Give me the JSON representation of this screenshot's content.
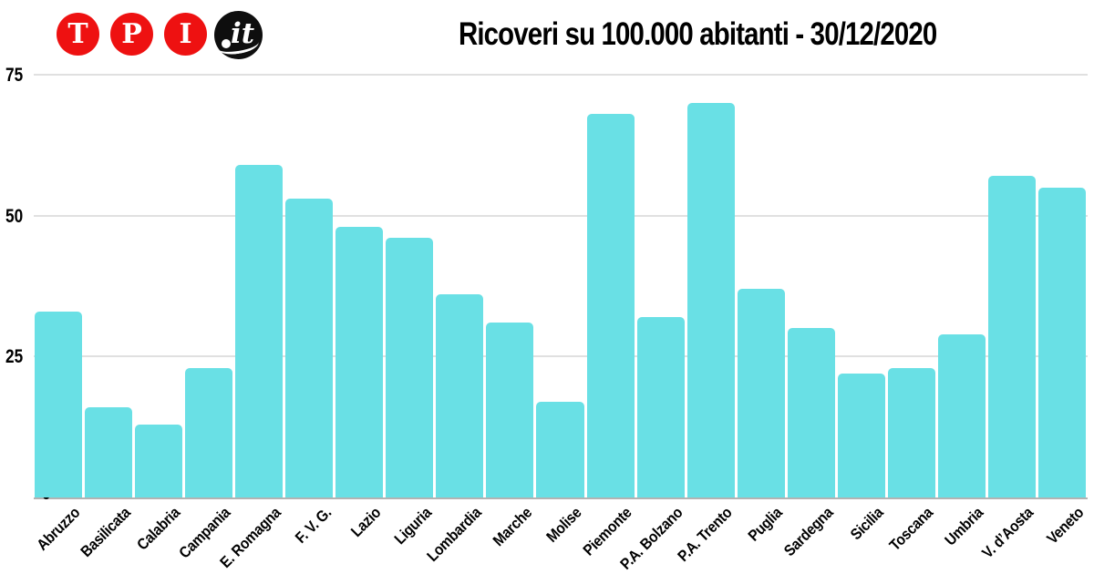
{
  "logo": {
    "letters": [
      "T",
      "P",
      "I"
    ],
    "suffix": "it",
    "circle_red": "#ee1111",
    "circle_black": "#0e0e0e"
  },
  "chart_data": {
    "type": "bar",
    "title": "Ricoveri su 100.000 abitanti - 30/12/2020",
    "categories": [
      "Abruzzo",
      "Basilicata",
      "Calabria",
      "Campania",
      "E. Romagna",
      "F. V. G.",
      "Lazio",
      "Liguria",
      "Lombardia",
      "Marche",
      "Molise",
      "Piemonte",
      "P.A. Bolzano",
      "P.A. Trento",
      "Puglia",
      "Sardegna",
      "Sicilia",
      "Toscana",
      "Umbria",
      "V. d’Aosta",
      "Veneto"
    ],
    "values": [
      33,
      16,
      13,
      23,
      59,
      53,
      48,
      46,
      36,
      31,
      17,
      68,
      32,
      70,
      37,
      30,
      22,
      23,
      29,
      57,
      55
    ],
    "xlabel": "",
    "ylabel": "",
    "ylim": [
      0,
      75
    ],
    "yticks": [
      0,
      25,
      50,
      75
    ],
    "bar_color": "#69e0e5",
    "gridline_color": "#e0e0e0",
    "baseline_color": "#b3b3b3",
    "grid": true,
    "legend": false
  }
}
